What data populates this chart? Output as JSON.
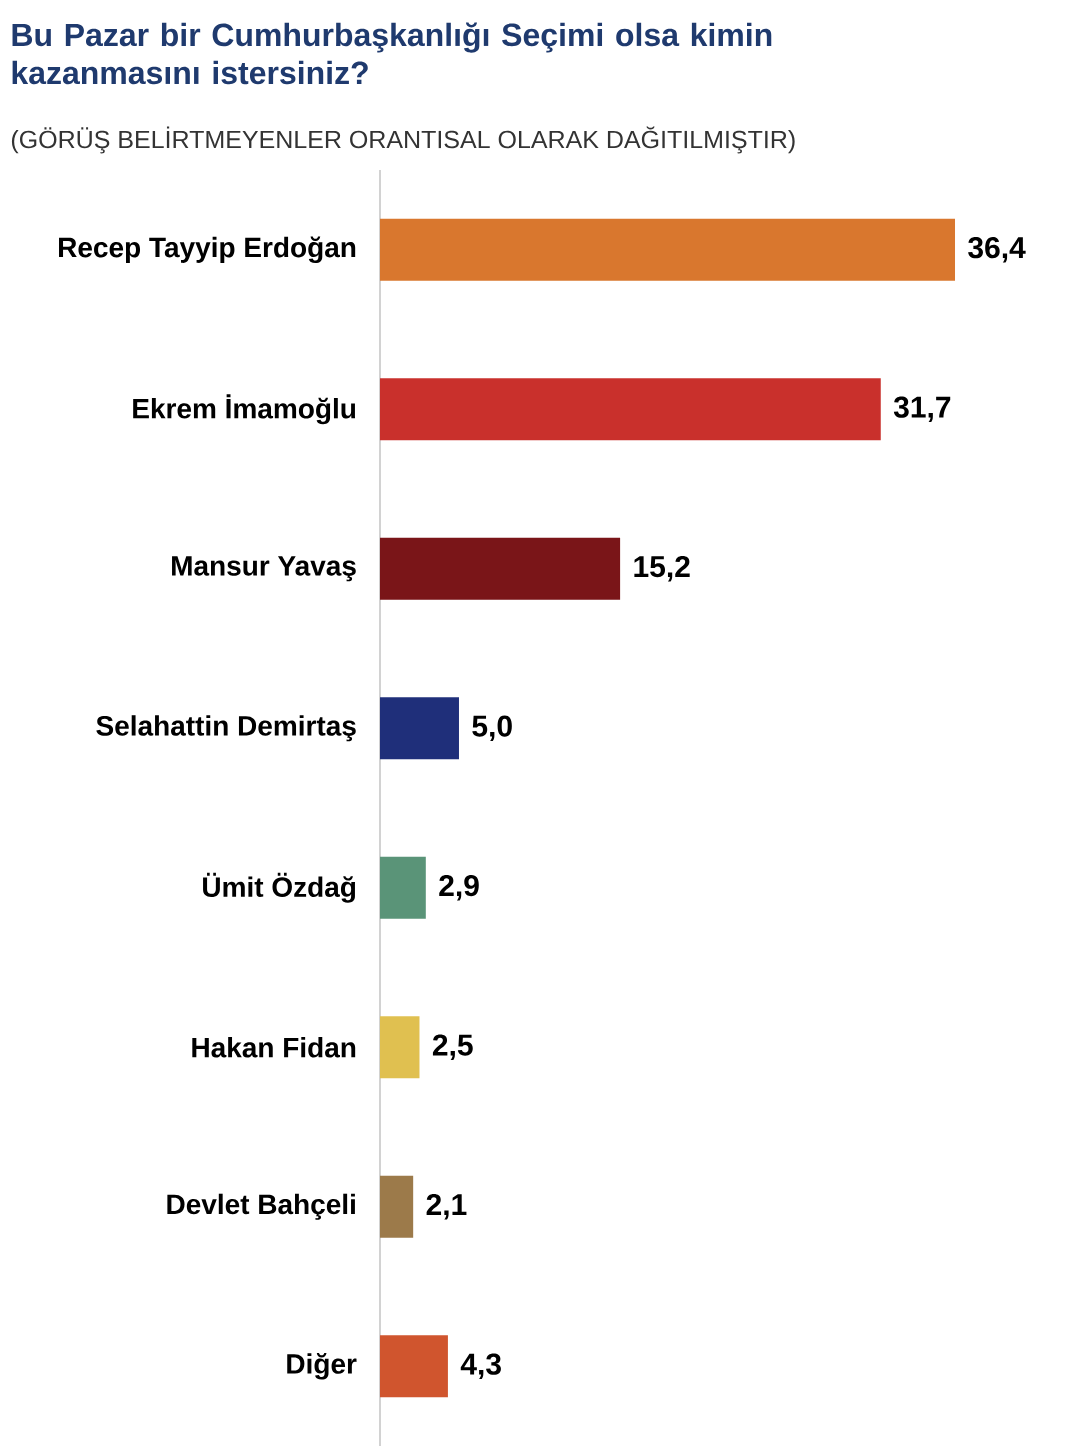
{
  "chart_data": {
    "type": "bar",
    "orientation": "horizontal",
    "title": "Bu Pazar bir Cumhurbaşkanlığı Seçimi olsa kimin kazanmasını istersiniz?",
    "subtitle": "(GÖRÜŞ BELİRTMEYENLER ORANTISAL OLARAK DAĞITILMIŞTIR)",
    "categories": [
      "Recep Tayyip Erdoğan",
      "Ekrem İmamoğlu",
      "Mansur Yavaş",
      "Selahattin Demirtaş",
      "Ümit Özdağ",
      "Hakan Fidan",
      "Devlet Bahçeli",
      "Diğer"
    ],
    "values": [
      36.4,
      31.7,
      15.2,
      5.0,
      2.9,
      2.5,
      2.1,
      4.3
    ],
    "value_labels": [
      "36,4",
      "31,7",
      "15,2",
      "5,0",
      "2,9",
      "2,5",
      "2,1",
      "4,3"
    ],
    "colors": [
      "#d9772e",
      "#c9302c",
      "#7a1518",
      "#1f2f7a",
      "#5a9478",
      "#e0c050",
      "#9c7a4a",
      "#d0552e"
    ]
  }
}
